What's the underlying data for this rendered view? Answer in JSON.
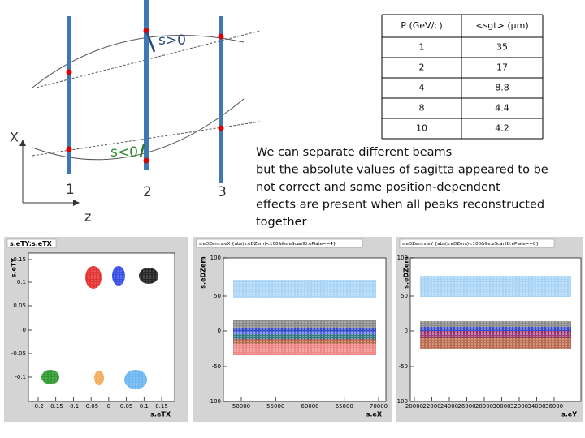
{
  "diagram": {
    "axis_x": "X",
    "axis_z": "z",
    "plane_labels": [
      "1",
      "2",
      "3"
    ],
    "positive_label": "s>0",
    "negative_label": "s<0"
  },
  "table": {
    "header": [
      "P (GeV/c)",
      "<sgt> (μm)"
    ],
    "rows": [
      [
        1,
        35
      ],
      [
        2,
        17
      ],
      [
        4,
        8.8
      ],
      [
        8,
        4.4
      ],
      [
        10,
        4.2
      ]
    ]
  },
  "text": {
    "lines": [
      "We can separate different beams",
      "but the absolute values of sagitta appeared to be",
      "not correct and some position-dependent",
      "effects are present when all peaks reconstructed",
      "together"
    ]
  },
  "plots": [
    {
      "title": "s.eTY:s.eTX",
      "y_label": "s.eTY",
      "x_label": "s.eTX",
      "yticks": [
        0.15,
        0.1,
        0.05,
        0,
        -0.05,
        -0.1
      ],
      "xticks": [
        -0.2,
        -0.15,
        -0.1,
        -0.05,
        0,
        0.05,
        0.1,
        0.15
      ]
    },
    {
      "title": "s.eDZem:s.eX {abs(s.eDZem)<100&&s.eScanID.ePlate==4}",
      "y_label": "s.eDZem",
      "x_label": "s.eX",
      "yticks": [
        100,
        50,
        0,
        -50,
        -100
      ],
      "xticks": [
        50000,
        55000,
        60000,
        65000,
        70000
      ]
    },
    {
      "title": "s.eDZem:s.eY {abs(s.eDZem)<100&&s.eScanID.ePlate==8}",
      "y_label": "s.eDZem",
      "x_label": "s.eY",
      "yticks": [
        100,
        50,
        0,
        -50,
        -100
      ],
      "xticks": [
        20000,
        22000,
        24000,
        26000,
        28000,
        30000,
        32000,
        34000,
        36000
      ]
    }
  ]
}
